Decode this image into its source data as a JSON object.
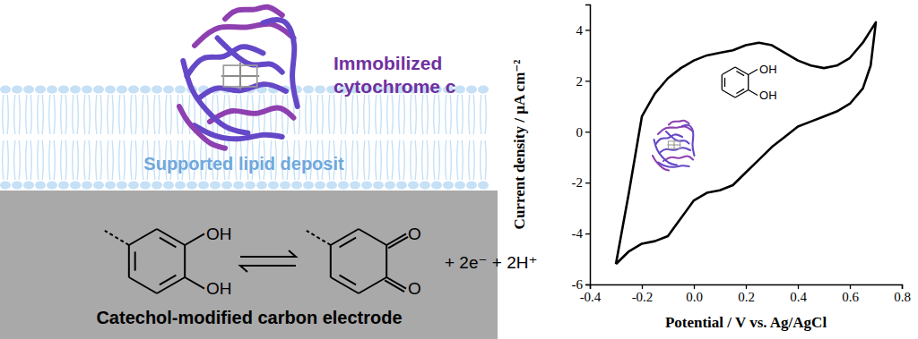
{
  "chart_data": {
    "type": "line",
    "xlabel": "Potential / V vs. Ag/AgCl",
    "ylabel": "Current density / µA cm⁻²",
    "x": [
      -0.3,
      -0.25,
      -0.2,
      -0.15,
      -0.1,
      -0.05,
      0.0,
      0.05,
      0.1,
      0.15,
      0.2,
      0.25,
      0.3,
      0.35,
      0.4,
      0.45,
      0.5,
      0.55,
      0.6,
      0.65,
      0.7,
      0.68,
      0.65,
      0.6,
      0.55,
      0.5,
      0.45,
      0.4,
      0.35,
      0.3,
      0.25,
      0.2,
      0.15,
      0.1,
      0.05,
      0.0,
      -0.05,
      -0.1,
      -0.15,
      -0.2,
      -0.25,
      -0.3
    ],
    "values": [
      -5.2,
      -2.4,
      0.6,
      1.5,
      2.1,
      2.5,
      2.8,
      3.0,
      3.1,
      3.2,
      3.4,
      3.5,
      3.4,
      3.1,
      2.8,
      2.6,
      2.5,
      2.6,
      2.9,
      3.5,
      4.3,
      2.6,
      1.7,
      1.1,
      0.8,
      0.6,
      0.4,
      0.2,
      -0.2,
      -0.6,
      -1.1,
      -1.6,
      -2.1,
      -2.3,
      -2.4,
      -2.7,
      -3.4,
      -4.1,
      -4.3,
      -4.4,
      -4.7,
      -5.2
    ],
    "color": "#000000",
    "xlim": [
      -0.4,
      0.8
    ],
    "ylim": [
      -6,
      5
    ],
    "xticks": [
      -0.4,
      -0.2,
      {
        "value": 0,
        "label": "0.0"
      },
      0.2,
      0.4,
      0.6,
      0.8
    ],
    "yticks": [
      -6,
      -4,
      -2,
      0,
      2,
      4
    ]
  },
  "inset": {
    "groups": [
      "OH",
      "OH"
    ]
  },
  "diagram": {
    "protein_label": [
      "Immobilized",
      "cytochrome c"
    ],
    "lipid_label": "Supported lipid deposit",
    "electrode_label": "Catechol-modified carbon electrode",
    "reactant_groups": [
      "OH",
      "OH"
    ],
    "product_groups": [
      "O",
      "O"
    ],
    "products_text": "+ 2e⁻ + 2H⁺"
  }
}
